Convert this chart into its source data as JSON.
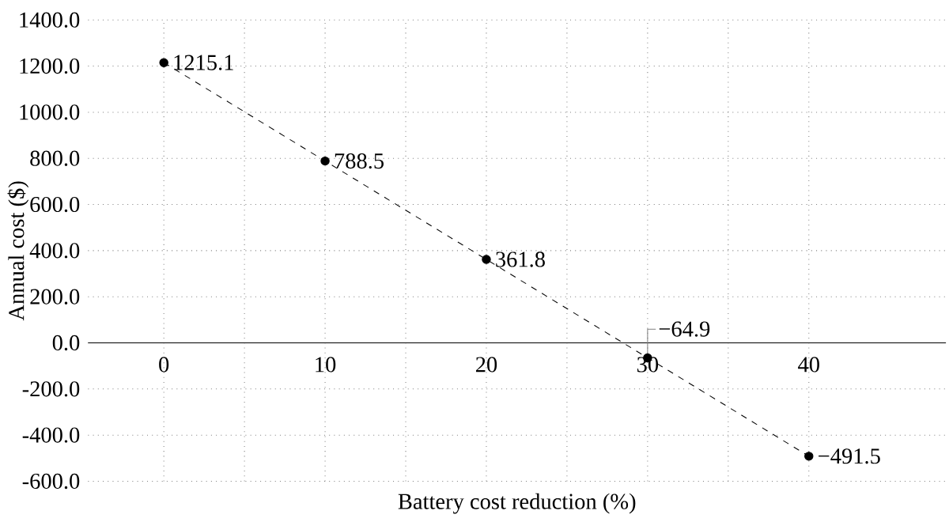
{
  "chart_data": {
    "type": "line",
    "xlabel": "Battery cost reduction (%)",
    "ylabel": "Annual cost ($)",
    "x": [
      0,
      10,
      20,
      30,
      40
    ],
    "series": [
      {
        "color": "#000000",
        "values": [
          1215.1,
          788.5,
          361.8,
          -64.9,
          -491.5
        ],
        "value_labels": [
          "1215.1",
          "788.5",
          "361.8",
          "−64.9",
          "−491.5"
        ]
      }
    ],
    "xlim": [
      -4.7,
      48.5
    ],
    "xticks": [
      0,
      10,
      20,
      30,
      40
    ],
    "ylim": [
      -600,
      1400
    ],
    "yticks": [
      {
        "value": -600,
        "label": "-600.0"
      },
      {
        "value": -400,
        "label": "-400.0"
      },
      {
        "value": -200,
        "label": "-200.0"
      },
      {
        "value": 0,
        "label": "0.0"
      },
      {
        "value": 200,
        "label": "200.0"
      },
      {
        "value": 400,
        "label": "400.0"
      },
      {
        "value": 600,
        "label": "600.0"
      },
      {
        "value": 800,
        "label": "800.0"
      },
      {
        "value": 1000,
        "label": "1000.0"
      },
      {
        "value": 1200,
        "label": "1200.0"
      },
      {
        "value": 1400,
        "label": "1400.0"
      }
    ],
    "grid": true,
    "marker": "circle",
    "line_style": "dashed"
  }
}
